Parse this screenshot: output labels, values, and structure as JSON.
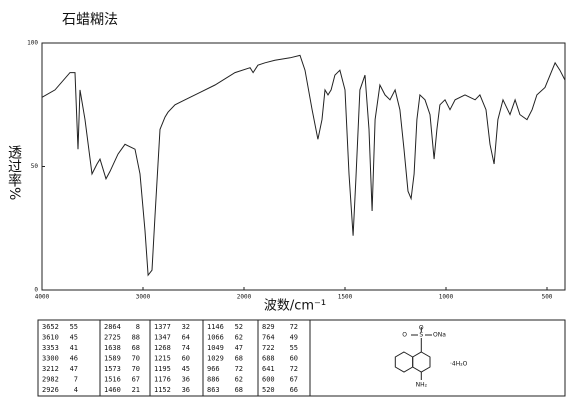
{
  "chart_data": {
    "type": "line",
    "title": "石蜡糊法",
    "x_label": "波数/cm⁻¹",
    "y_label": "透过率%",
    "color": "#222222",
    "xlim": [
      4000,
      410
    ],
    "xticks": [
      4000,
      3000,
      2000,
      1500,
      1000,
      500
    ],
    "ylim": [
      0,
      100
    ],
    "yticks": [
      0,
      50,
      100
    ],
    "x": [
      4000,
      3871,
      3723,
      3673,
      3644,
      3624,
      3574,
      3505,
      3455,
      3426,
      3366,
      3327,
      3248,
      3178,
      3079,
      3030,
      2980,
      2950,
      2911,
      2881,
      2832,
      2782,
      2752,
      2683,
      2584,
      2436,
      2287,
      2089,
      1970,
      1955,
      1931,
      1896,
      1847,
      1772,
      1723,
      1698,
      1663,
      1634,
      1614,
      1599,
      1584,
      1569,
      1550,
      1525,
      1500,
      1480,
      1460,
      1446,
      1426,
      1401,
      1381,
      1366,
      1351,
      1327,
      1302,
      1277,
      1252,
      1228,
      1208,
      1188,
      1173,
      1158,
      1144,
      1129,
      1104,
      1079,
      1059,
      1045,
      1030,
      1005,
      980,
      955,
      906,
      856,
      832,
      802,
      782,
      762,
      743,
      718,
      683,
      658,
      634,
      599,
      574,
      550,
      510,
      460,
      436,
      411
    ],
    "values": [
      78,
      81,
      88,
      88,
      57,
      81,
      69,
      47,
      51,
      53,
      45,
      48,
      55,
      59,
      57,
      47,
      24,
      6,
      8,
      30,
      65,
      70,
      72,
      75,
      77,
      80,
      83,
      88,
      90,
      88,
      91,
      92,
      93,
      94,
      95,
      89,
      73,
      61,
      69,
      81,
      79,
      81,
      87,
      89,
      81,
      47,
      22,
      45,
      81,
      87,
      65,
      32,
      69,
      83,
      79,
      77,
      81,
      73,
      57,
      40,
      37,
      47,
      69,
      79,
      77,
      71,
      53,
      65,
      75,
      77,
      73,
      77,
      79,
      77,
      79,
      73,
      59,
      51,
      69,
      77,
      71,
      77,
      71,
      69,
      73,
      79,
      82,
      92,
      89,
      85
    ]
  },
  "peak_table": [
    [
      [
        3652,
        55
      ],
      [
        3610,
        45
      ],
      [
        3353,
        41
      ],
      [
        3300,
        46
      ],
      [
        3212,
        47
      ],
      [
        2982,
        7
      ],
      [
        2926,
        4
      ]
    ],
    [
      [
        2864,
        8
      ],
      [
        2725,
        88
      ],
      [
        1638,
        68
      ],
      [
        1589,
        70
      ],
      [
        1573,
        70
      ],
      [
        1516,
        67
      ],
      [
        1460,
        21
      ]
    ],
    [
      [
        1377,
        32
      ],
      [
        1347,
        64
      ],
      [
        1268,
        74
      ],
      [
        1215,
        60
      ],
      [
        1195,
        45
      ],
      [
        1176,
        36
      ],
      [
        1152,
        36
      ]
    ],
    [
      [
        1146,
        52
      ],
      [
        1066,
        62
      ],
      [
        1049,
        47
      ],
      [
        1029,
        68
      ],
      [
        966,
        72
      ],
      [
        886,
        62
      ],
      [
        863,
        68
      ]
    ],
    [
      [
        829,
        72
      ],
      [
        764,
        49
      ],
      [
        722,
        55
      ],
      [
        688,
        60
      ],
      [
        641,
        72
      ],
      [
        600,
        67
      ],
      [
        520,
        66
      ]
    ]
  ],
  "structure": {
    "atoms": [
      "O",
      "S",
      "O",
      "ONa",
      "NH₂"
    ],
    "hydrate": "·4H₂O"
  }
}
